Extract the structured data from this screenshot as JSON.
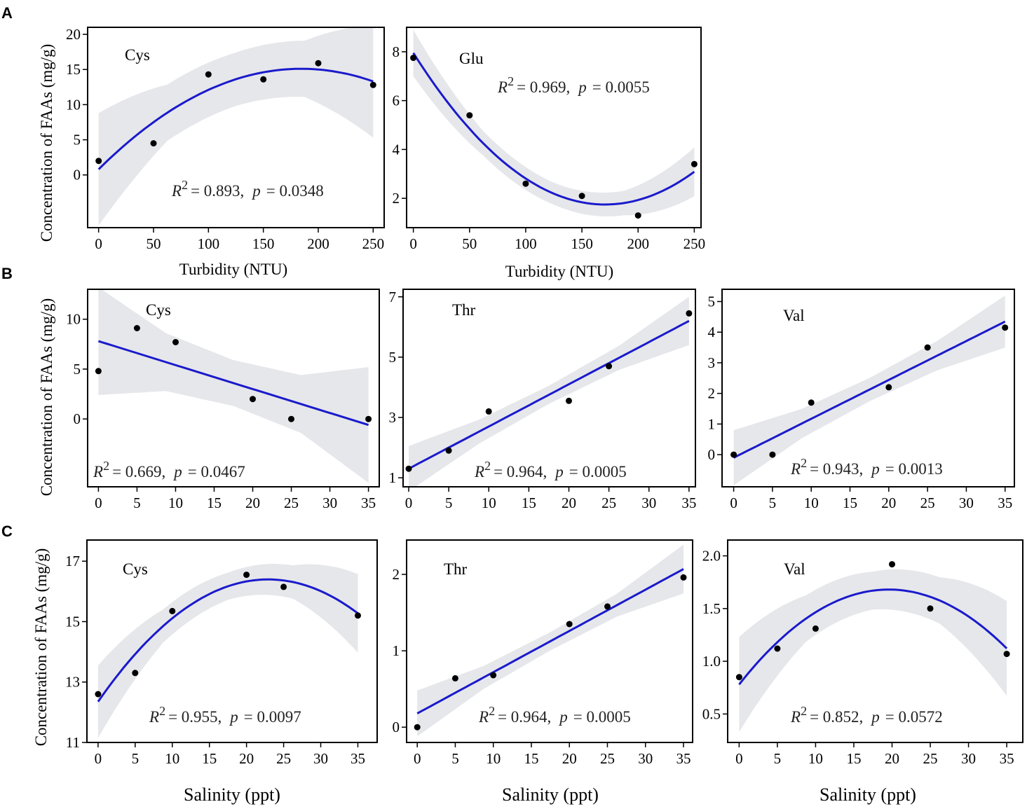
{
  "panel_labels": [
    "A",
    "B",
    "C"
  ],
  "ylabel": "Concentration of FAAs (mg/g)",
  "colors": {
    "fit_line": "#1a1acc",
    "band": "#e6e7ea",
    "points": "#000000",
    "frame": "#000000"
  },
  "chart_data": [
    {
      "type": "scatter",
      "panel": "A",
      "name": "Cys",
      "xlabel": "Turbidity (NTU)",
      "xlim": [
        -10,
        260
      ],
      "ylim": [
        -7.5,
        21
      ],
      "xticks": [
        0,
        50,
        100,
        150,
        200,
        250
      ],
      "yticks": [
        0,
        5,
        10,
        15,
        20
      ],
      "points": {
        "x": [
          0,
          50,
          100,
          150,
          200,
          250
        ],
        "y": [
          2,
          4.5,
          14.3,
          13.6,
          15.9,
          12.8
        ]
      },
      "fit": {
        "model": "quadratic",
        "coef": [
          0.8,
          0.155,
          -0.00042
        ],
        "band_halfwidth": [
          8.0,
          4.0,
          3.8,
          4.0,
          8.0
        ]
      },
      "stats": {
        "r2_label": "R",
        "r2_exp": "2",
        "r2_value": "= 0.893,",
        "p_label": "p",
        "p_value": "= 0.0348"
      }
    },
    {
      "type": "scatter",
      "panel": "A",
      "name": "Glu",
      "xlabel": "Turbidity (NTU)",
      "xlim": [
        -6,
        256
      ],
      "ylim": [
        0.8,
        9.0
      ],
      "xticks": [
        0,
        50,
        100,
        150,
        200,
        250
      ],
      "yticks": [
        2,
        4,
        6,
        8
      ],
      "points": {
        "x": [
          0,
          50,
          100,
          150,
          200,
          250
        ],
        "y": [
          7.75,
          5.4,
          2.6,
          2.1,
          1.3,
          3.4
        ]
      },
      "fit": {
        "model": "quadratic",
        "coef": [
          7.95,
          -0.0727,
          0.000213
        ],
        "band_halfwidth": [
          0.95,
          0.5,
          0.45,
          0.5,
          1.0
        ]
      },
      "stats": {
        "r2_label": "R",
        "r2_exp": "2",
        "r2_value": "= 0.969,",
        "p_label": "p",
        "p_value": "= 0.0055"
      }
    },
    {
      "type": "scatter",
      "panel": "B",
      "name": "Cys",
      "xlabel": "",
      "xlim": [
        -1.4,
        36.4
      ],
      "ylim": [
        -6.8,
        13
      ],
      "xticks": [
        0,
        5,
        10,
        15,
        20,
        25,
        30,
        35
      ],
      "yticks": [
        0,
        5,
        10
      ],
      "points": {
        "x": [
          0,
          5,
          10,
          20,
          25,
          35
        ],
        "y": [
          4.8,
          9.1,
          7.7,
          2.0,
          0.0,
          0.0
        ]
      },
      "fit": {
        "model": "linear",
        "coef": [
          7.8,
          -0.24
        ],
        "band_halfwidth": [
          5.4,
          2.9,
          2.3,
          2.9,
          5.8
        ]
      },
      "stats": {
        "r2_label": "R",
        "r2_exp": "2",
        "r2_value": "= 0.669,",
        "p_label": "p",
        "p_value": "= 0.0467"
      }
    },
    {
      "type": "scatter",
      "panel": "B",
      "name": "Thr",
      "xlabel": "",
      "xlim": [
        -0.7,
        35.8
      ],
      "ylim": [
        0.7,
        7.25
      ],
      "xticks": [
        0,
        5,
        10,
        15,
        20,
        25,
        30,
        35
      ],
      "yticks": [
        1,
        3,
        5,
        7
      ],
      "points": {
        "x": [
          0,
          5,
          10,
          20,
          25,
          35
        ],
        "y": [
          1.3,
          1.9,
          3.2,
          3.55,
          4.7,
          6.45
        ]
      },
      "fit": {
        "model": "linear",
        "coef": [
          1.3,
          0.14
        ],
        "band_halfwidth": [
          0.75,
          0.4,
          0.3,
          0.4,
          0.8
        ]
      },
      "stats": {
        "r2_label": "R",
        "r2_exp": "2",
        "r2_value": "= 0.964,",
        "p_label": "p",
        "p_value": "= 0.0005"
      }
    },
    {
      "type": "scatter",
      "panel": "B",
      "name": "Val",
      "xlabel": "",
      "xlim": [
        -1.5,
        36.2
      ],
      "ylim": [
        -1.05,
        5.4
      ],
      "xticks": [
        0,
        5,
        10,
        15,
        20,
        25,
        30,
        35
      ],
      "yticks": [
        0,
        1,
        2,
        3,
        4,
        5
      ],
      "points": {
        "x": [
          0,
          5,
          10,
          20,
          25,
          35
        ],
        "y": [
          0.0,
          0.0,
          1.7,
          2.2,
          3.5,
          4.15
        ]
      },
      "fit": {
        "model": "linear",
        "coef": [
          -0.1,
          0.127
        ],
        "band_halfwidth": [
          0.9,
          0.48,
          0.38,
          0.48,
          0.85
        ]
      },
      "stats": {
        "r2_label": "R",
        "r2_exp": "2",
        "r2_value": "= 0.943,",
        "p_label": "p",
        "p_value": "= 0.0013"
      }
    },
    {
      "type": "scatter",
      "panel": "C",
      "name": "Cys",
      "xlabel": "Salinity (ppt)",
      "xlim": [
        -1.5,
        37.6
      ],
      "ylim": [
        11,
        17.7
      ],
      "xticks": [
        0,
        5,
        10,
        15,
        20,
        25,
        30,
        35
      ],
      "yticks": [
        11,
        13,
        15,
        17
      ],
      "points": {
        "x": [
          0,
          5,
          10,
          20,
          25,
          35
        ],
        "y": [
          12.6,
          13.3,
          15.35,
          16.55,
          16.15,
          15.2
        ]
      },
      "fit": {
        "model": "quadratic",
        "coef": [
          12.35,
          0.353,
          -0.0077
        ],
        "band_halfwidth": [
          1.2,
          0.55,
          0.45,
          0.55,
          1.3
        ]
      },
      "stats": {
        "r2_label": "R",
        "r2_exp": "2",
        "r2_value": "= 0.955,",
        "p_label": "p",
        "p_value": "= 0.0097"
      }
    },
    {
      "type": "scatter",
      "panel": "C",
      "name": "Thr",
      "xlabel": "Salinity (ppt)",
      "xlim": [
        -1.4,
        36.2
      ],
      "ylim": [
        -0.2,
        2.45
      ],
      "xticks": [
        0,
        5,
        10,
        15,
        20,
        25,
        30,
        35
      ],
      "yticks": [
        0,
        1,
        2
      ],
      "points": {
        "x": [
          0,
          5,
          10,
          20,
          25,
          35
        ],
        "y": [
          0.0,
          0.64,
          0.68,
          1.35,
          1.58,
          1.96
        ]
      },
      "fit": {
        "model": "linear",
        "coef": [
          0.18,
          0.054
        ],
        "band_halfwidth": [
          0.3,
          0.15,
          0.12,
          0.15,
          0.32
        ]
      },
      "stats": {
        "r2_label": "R",
        "r2_exp": "2",
        "r2_value": "= 0.964,",
        "p_label": "p",
        "p_value": "= 0.0005"
      }
    },
    {
      "type": "scatter",
      "panel": "C",
      "name": "Val",
      "xlabel": "Salinity (ppt)",
      "xlim": [
        -1.5,
        37.1
      ],
      "ylim": [
        0.23,
        2.15
      ],
      "xticks": [
        0,
        5,
        10,
        15,
        20,
        25,
        30,
        35
      ],
      "yticks": [
        0.5,
        1.0,
        1.5,
        2.0
      ],
      "ytick_labels": [
        "0.5",
        "1.0",
        "1.5",
        "2.0"
      ],
      "points": {
        "x": [
          0,
          5,
          10,
          20,
          25,
          35
        ],
        "y": [
          0.85,
          1.12,
          1.31,
          1.92,
          1.5,
          1.07
        ]
      },
      "fit": {
        "model": "quadratic",
        "coef": [
          0.78,
          0.092,
          -0.00235
        ],
        "band_halfwidth": [
          0.45,
          0.22,
          0.18,
          0.22,
          0.45
        ]
      },
      "stats": {
        "r2_label": "R",
        "r2_exp": "2",
        "r2_value": "= 0.852,",
        "p_label": "p",
        "p_value": "= 0.0572"
      }
    }
  ]
}
